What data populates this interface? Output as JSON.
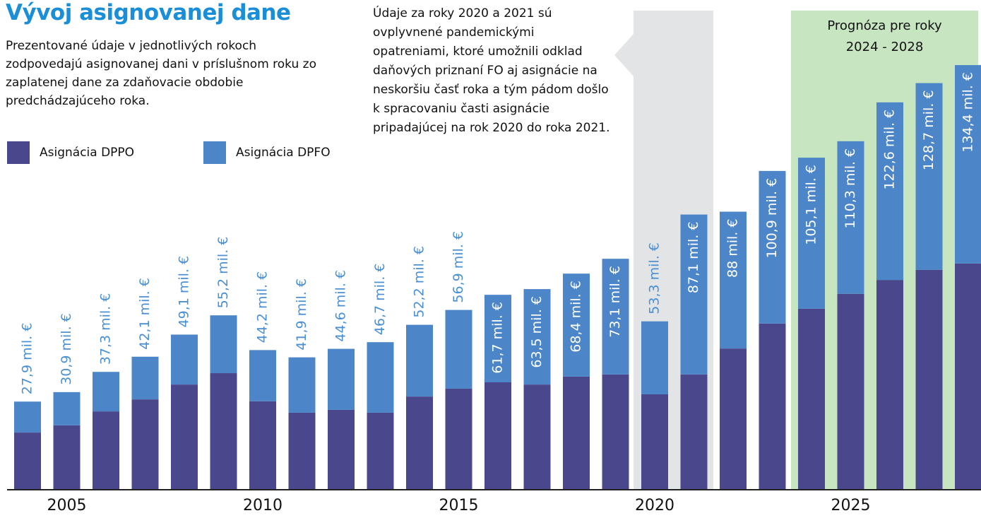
{
  "chart_data": {
    "type": "stacked-bar",
    "title": "Vývoj asignovanej dane",
    "subtitle": "Prezentované údaje v jednotlivých rokoch zodpovedajú asignovanej dani v príslušnom roku zo zaplatenej dane za zdaňovacie obdobie predchádzajúceho roka.",
    "annotation": "Údaje za roky 2020 a 2021 sú ovplyvnené pandemickými opatreniami, ktoré umožnili odklad daňových priznaní FO aj asignácie na neskoršiu časť roka a tým pádom došlo k spracovaniu časti asignácie pripadajúcej na rok 2020 do roka 2021.",
    "forecast_label": [
      "Prognóza pre roky",
      "2024 - 2028"
    ],
    "categories": [
      null,
      "2005",
      null,
      null,
      null,
      null,
      "2010",
      null,
      null,
      null,
      null,
      "2015",
      null,
      null,
      null,
      null,
      "2020",
      null,
      null,
      null,
      null,
      "2025",
      null,
      null,
      null
    ],
    "series": [
      {
        "name": "Asignácia DPPO",
        "color": "#4b478c",
        "values": [
          18.1,
          20.4,
          24.8,
          28.6,
          33.3,
          36.9,
          28.0,
          24.4,
          25.3,
          24.4,
          29.5,
          32.0,
          34.0,
          33.3,
          35.8,
          36.5,
          30.2,
          36.5,
          44.7,
          52.6,
          57.3,
          62.0,
          66.4,
          69.6,
          71.6
        ]
      },
      {
        "name": "Asignácia DPFO",
        "color": "#4c86c8",
        "values": [
          9.8,
          10.5,
          12.5,
          13.5,
          15.8,
          18.3,
          16.2,
          17.5,
          19.3,
          22.3,
          22.7,
          24.9,
          27.7,
          30.2,
          32.6,
          36.6,
          23.1,
          50.6,
          43.3,
          48.3,
          47.8,
          48.3,
          56.2,
          59.1,
          62.8
        ]
      }
    ],
    "totals": [
      27.9,
      30.9,
      37.3,
      42.1,
      49.1,
      55.2,
      44.2,
      41.9,
      44.6,
      46.7,
      52.2,
      56.9,
      61.7,
      63.5,
      68.4,
      73.1,
      53.3,
      87.1,
      88,
      100.9,
      105.1,
      110.3,
      122.6,
      128.7,
      134.4
    ],
    "value_labels": [
      "27,9 mil. €",
      "30,9 mil. €",
      "37,3 mil. €",
      "42,1 mil. €",
      "49,1 mil. €",
      "55,2 mil. €",
      "44,2 mil. €",
      "41,9 mil. €",
      "44,6 mil. €",
      "46,7 mil. €",
      "52,2 mil. €",
      "56,9 mil. €",
      "61,7 mil. €",
      "63,5 mil. €",
      "68,4 mil. €",
      "73,1 mil. €",
      "53,3 mil. €",
      "87,1 mil. €",
      "88 mil. €",
      "100,9 mil. €",
      "105,1 mil. €",
      "110,3 mil. €",
      "122,6 mil. €",
      "128,7 mil. €",
      "134,4 mil. €"
    ],
    "ylim": [
      0,
      155
    ]
  }
}
